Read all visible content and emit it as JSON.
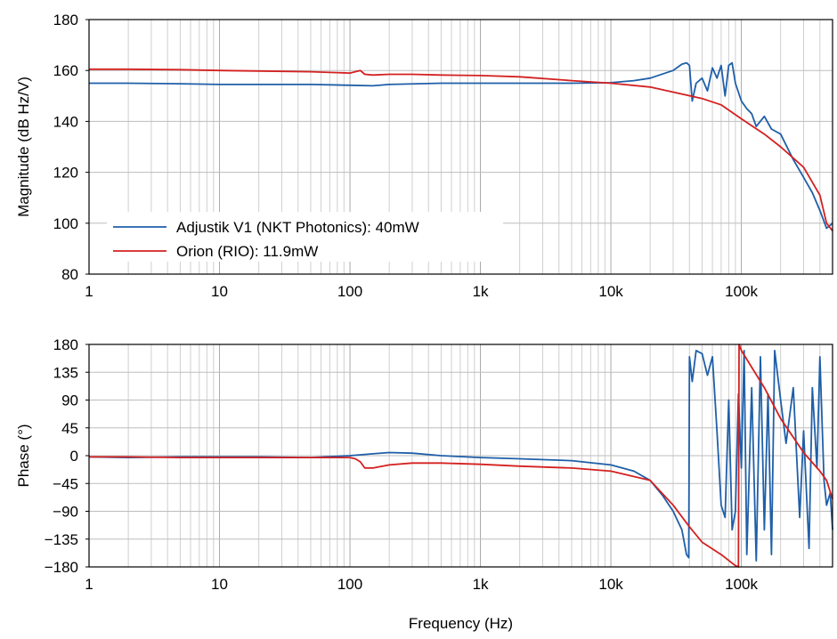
{
  "chart_data": [
    {
      "type": "line",
      "ylabel": "Magnitude (dB Hz/V)",
      "x_scale": "log",
      "xlim": [
        1,
        500000
      ],
      "ylim": [
        80,
        180
      ],
      "x_ticks": [
        1,
        10,
        100,
        1000,
        10000,
        100000
      ],
      "x_tick_labels": [
        "1",
        "10",
        "100",
        "1k",
        "10k",
        "100k"
      ],
      "y_ticks": [
        80,
        100,
        120,
        140,
        160,
        180
      ],
      "y_tick_labels": [
        "80",
        "100",
        "120",
        "140",
        "160",
        "180"
      ],
      "grid": true,
      "legend_position": "bottom-left",
      "series": [
        {
          "name": "Adjustik V1 (NKT Photonics): 40mW",
          "color": "#1f5fa8",
          "x": [
            1,
            2,
            5,
            10,
            20,
            50,
            100,
            150,
            200,
            500,
            1000,
            2000,
            5000,
            10000,
            15000,
            20000,
            30000,
            35000,
            38000,
            40000,
            42000,
            45000,
            50000,
            55000,
            60000,
            65000,
            70000,
            75000,
            80000,
            85000,
            90000,
            100000,
            110000,
            120000,
            130000,
            150000,
            170000,
            200000,
            250000,
            300000,
            350000,
            400000,
            450000,
            500000
          ],
          "y": [
            155,
            155,
            154.8,
            154.5,
            154.5,
            154.5,
            154.2,
            154,
            154.5,
            155,
            155,
            155,
            155,
            155.2,
            156,
            157,
            160,
            162.5,
            163,
            162,
            148,
            155,
            157,
            152,
            161,
            157,
            162,
            150,
            162,
            163,
            155,
            148,
            145,
            143,
            138,
            142,
            137,
            135,
            125,
            118,
            112,
            105,
            98,
            100
          ]
        },
        {
          "name": "Orion (RIO): 11.9mW",
          "color": "#d42020",
          "x": [
            1,
            2,
            5,
            10,
            20,
            50,
            100,
            120,
            130,
            150,
            200,
            300,
            500,
            1000,
            2000,
            5000,
            10000,
            20000,
            30000,
            50000,
            70000,
            100000,
            150000,
            200000,
            300000,
            400000,
            450000,
            500000
          ],
          "y": [
            160.5,
            160.5,
            160.3,
            160,
            159.8,
            159.5,
            159,
            160,
            158.5,
            158.2,
            158.5,
            158.5,
            158.2,
            158,
            157.5,
            156,
            155,
            153.5,
            151.5,
            149,
            146.5,
            141,
            135,
            130,
            122,
            111,
            100,
            97
          ]
        }
      ]
    },
    {
      "type": "line",
      "xlabel": "Frequency (Hz)",
      "ylabel": "Phase (°)",
      "x_scale": "log",
      "xlim": [
        1,
        500000
      ],
      "ylim": [
        -180,
        180
      ],
      "x_ticks": [
        1,
        10,
        100,
        1000,
        10000,
        100000
      ],
      "x_tick_labels": [
        "1",
        "10",
        "100",
        "1k",
        "10k",
        "100k"
      ],
      "y_ticks": [
        -180,
        -135,
        -90,
        -45,
        0,
        45,
        90,
        135,
        180
      ],
      "y_tick_labels": [
        "−180",
        "−135",
        "−90",
        "−45",
        "0",
        "45",
        "90",
        "135",
        "180"
      ],
      "grid": true,
      "series": [
        {
          "name": "Adjustik V1 (NKT Photonics): 40mW",
          "color": "#1f5fa8",
          "x": [
            1,
            2,
            5,
            10,
            20,
            50,
            100,
            150,
            200,
            300,
            500,
            1000,
            2000,
            5000,
            10000,
            15000,
            20000,
            25000,
            30000,
            35000,
            38000,
            39500,
            40000,
            42000,
            45000,
            50000,
            55000,
            60000,
            65000,
            70000,
            75000,
            80000,
            85000,
            90000,
            95000,
            100000,
            105000,
            110000,
            120000,
            130000,
            140000,
            150000,
            160000,
            170000,
            180000,
            200000,
            220000,
            250000,
            280000,
            300000,
            330000,
            350000,
            380000,
            400000,
            430000,
            450000,
            480000,
            500000
          ],
          "y": [
            -2,
            -3,
            -2,
            -2,
            -2,
            -3,
            0,
            3,
            5,
            4,
            0,
            -3,
            -5,
            -8,
            -15,
            -25,
            -40,
            -65,
            -90,
            -120,
            -160,
            -165,
            160,
            120,
            170,
            165,
            130,
            160,
            40,
            -80,
            -100,
            90,
            -120,
            -90,
            100,
            -20,
            170,
            -160,
            110,
            -170,
            160,
            -120,
            100,
            -160,
            170,
            90,
            20,
            110,
            -100,
            40,
            -150,
            110,
            -20,
            160,
            -40,
            -80,
            -60,
            -120
          ]
        },
        {
          "name": "Orion (RIO): 11.9mW",
          "color": "#d42020",
          "x": [
            1,
            2,
            5,
            10,
            20,
            50,
            100,
            110,
            120,
            130,
            150,
            200,
            300,
            500,
            1000,
            2000,
            5000,
            10000,
            20000,
            30000,
            40000,
            50000,
            70000,
            90000,
            95000,
            96000,
            100000,
            150000,
            200000,
            300000,
            400000,
            450000,
            500000
          ],
          "y": [
            -2,
            -2,
            -3,
            -3,
            -3,
            -3,
            -3,
            -5,
            -10,
            -20,
            -20,
            -15,
            -12,
            -12,
            -14,
            -17,
            -20,
            -25,
            -40,
            -80,
            -115,
            -140,
            -160,
            -178,
            -180,
            180,
            170,
            110,
            60,
            5,
            -25,
            -40,
            -70
          ]
        }
      ]
    }
  ]
}
